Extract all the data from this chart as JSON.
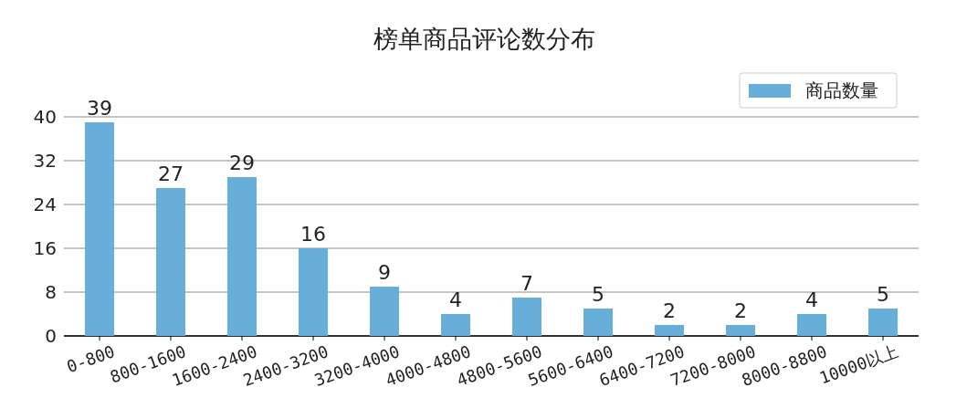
{
  "chart_data": {
    "type": "bar",
    "title": "榜单商品评论数分布",
    "categories": [
      "0-800",
      "800-1600",
      "1600-2400",
      "2400-3200",
      "3200-4000",
      "4000-4800",
      "4800-5600",
      "5600-6400",
      "6400-7200",
      "7200-8000",
      "8000-8800",
      "10000以上"
    ],
    "series": [
      {
        "name": "商品数量",
        "color": "#67aedb",
        "values": [
          39,
          27,
          29,
          16,
          9,
          4,
          7,
          5,
          2,
          2,
          4,
          5
        ]
      }
    ],
    "ylim": [
      0,
      40
    ],
    "yticks": [
      0,
      8,
      16,
      24,
      32,
      40
    ],
    "grid": "y",
    "legend": "top right",
    "data_labels": true
  }
}
